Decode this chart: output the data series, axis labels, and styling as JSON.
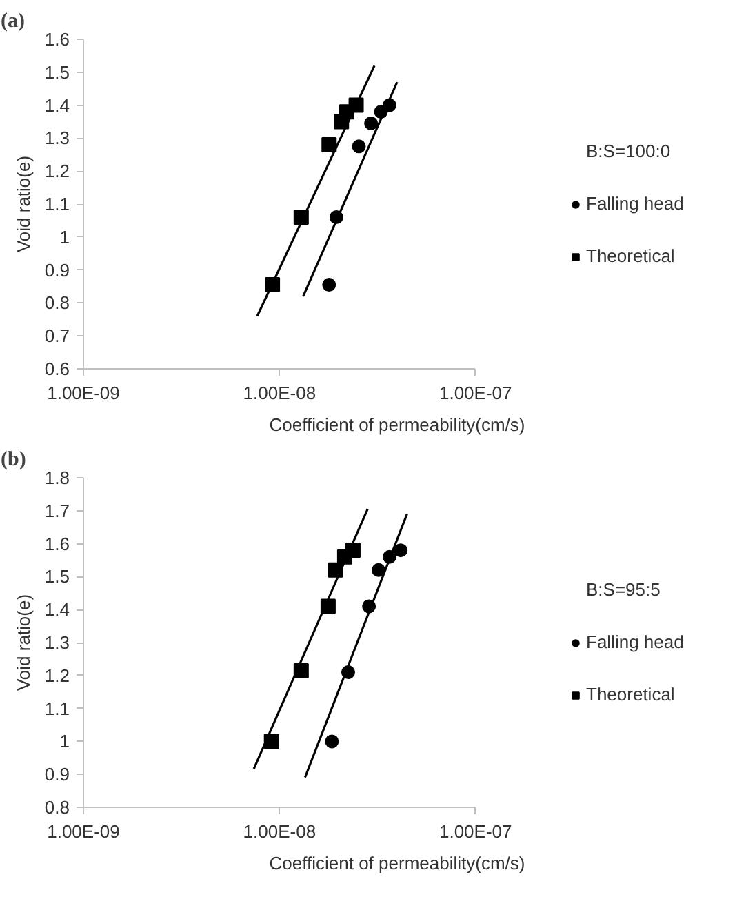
{
  "chart_data": [
    {
      "type": "scatter",
      "title": "(a)",
      "xlabel": "Coefficient of permeability(cm/s)",
      "ylabel": "Void ratio(e)",
      "log": "x",
      "grid": false,
      "legend": "right",
      "xlim": [
        1e-09,
        1e-07
      ],
      "xticks": [
        {
          "value": 1e-09,
          "label": "1.00E-09"
        },
        {
          "value": 1e-08,
          "label": "1.00E-08"
        },
        {
          "value": 1e-07,
          "label": "1.00E-07"
        }
      ],
      "ylim": [
        0.6,
        1.6
      ],
      "yticks": [
        0.6,
        0.7,
        0.8,
        0.9,
        1,
        1.1,
        1.2,
        1.3,
        1.4,
        1.5,
        1.6
      ],
      "annotations": [
        "B:S=100:0"
      ],
      "series": [
        {
          "name": "Falling head",
          "color": "#000000",
          "marker": "circle",
          "x": [
            1.79e-08,
            1.95e-08,
            2.54e-08,
            2.93e-08,
            3.29e-08,
            3.64e-08
          ],
          "values": [
            0.855,
            1.06,
            1.275,
            1.345,
            1.38,
            1.4
          ]
        },
        {
          "name": "Theoretical",
          "color": "#000000",
          "marker": "square",
          "x": [
            9.2e-09,
            1.29e-08,
            1.79e-08,
            2.07e-08,
            2.2e-08,
            2.46e-08
          ],
          "values": [
            0.855,
            1.06,
            1.28,
            1.35,
            1.38,
            1.4
          ]
        },
        {
          "type": "line",
          "color": "#000000",
          "line_style": "solid",
          "x": [
            1.32e-08,
            3.98e-08
          ],
          "values": [
            0.82,
            1.47
          ]
        },
        {
          "type": "line",
          "color": "#000000",
          "line_style": "solid",
          "x": [
            7.7e-09,
            3.05e-08
          ],
          "values": [
            0.76,
            1.52
          ]
        }
      ]
    },
    {
      "type": "scatter",
      "title": "(b)",
      "xlabel": "Coefficient of permeability(cm/s)",
      "ylabel": "Void ratio(e)",
      "log": "x",
      "grid": false,
      "legend": "right",
      "xlim": [
        1e-09,
        1e-07
      ],
      "xticks": [
        {
          "value": 1e-09,
          "label": "1.00E-09"
        },
        {
          "value": 1e-08,
          "label": "1.00E-08"
        },
        {
          "value": 1e-07,
          "label": "1.00E-07"
        }
      ],
      "ylim": [
        0.8,
        1.8
      ],
      "yticks": [
        0.8,
        0.9,
        1,
        1.1,
        1.2,
        1.3,
        1.4,
        1.5,
        1.6,
        1.7,
        1.8
      ],
      "annotations": [
        "B:S=95:5"
      ],
      "series": [
        {
          "name": "Falling head",
          "color": "#000000",
          "marker": "circle",
          "x": [
            1.85e-08,
            2.24e-08,
            2.86e-08,
            3.2e-08,
            3.64e-08,
            4.15e-08
          ],
          "values": [
            1.0,
            1.21,
            1.41,
            1.52,
            1.56,
            1.58
          ]
        },
        {
          "name": "Theoretical",
          "color": "#000000",
          "marker": "square",
          "x": [
            9.1e-09,
            1.29e-08,
            1.77e-08,
            1.93e-08,
            2.15e-08,
            2.37e-08
          ],
          "values": [
            1.0,
            1.214,
            1.41,
            1.52,
            1.56,
            1.58
          ]
        },
        {
          "type": "line",
          "color": "#000000",
          "line_style": "solid",
          "x": [
            1.35e-08,
            4.47e-08
          ],
          "values": [
            0.891,
            1.69
          ]
        },
        {
          "type": "line",
          "color": "#000000",
          "line_style": "solid",
          "x": [
            7.4e-09,
            2.82e-08
          ],
          "values": [
            0.917,
            1.706
          ]
        }
      ]
    }
  ]
}
